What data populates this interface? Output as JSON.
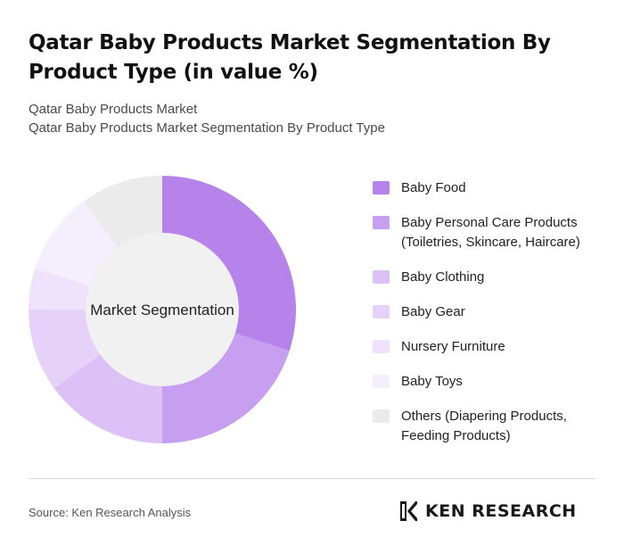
{
  "title": "Qatar Baby Products Market Segmentation By Product Type (in value %)",
  "subtitle_line1": "Qatar Baby Products Market",
  "subtitle_line2": "Qatar Baby Products Market Segmentation By Product Type",
  "source": "Source: Ken Research Analysis",
  "logo": {
    "text": "KEN RESEARCH",
    "icon": "ken-research-logo-icon"
  },
  "chart_data": {
    "type": "pie",
    "variant": "donut",
    "center_label": "Market Segmentation",
    "categories": [
      "Baby Food",
      "Baby Personal Care Products (Toiletries, Skincare, Haircare)",
      "Baby Clothing",
      "Baby Gear",
      "Nursery Furniture",
      "Baby Toys",
      "Others (Diapering Products, Feeding Products)"
    ],
    "values": [
      30,
      20,
      15,
      10,
      5,
      10,
      10
    ],
    "colors": [
      "#b583ea",
      "#c79ff0",
      "#dcc1f6",
      "#e6d2f8",
      "#efe3fb",
      "#f5eefd",
      "#ebebeb"
    ],
    "legend_position": "right"
  }
}
